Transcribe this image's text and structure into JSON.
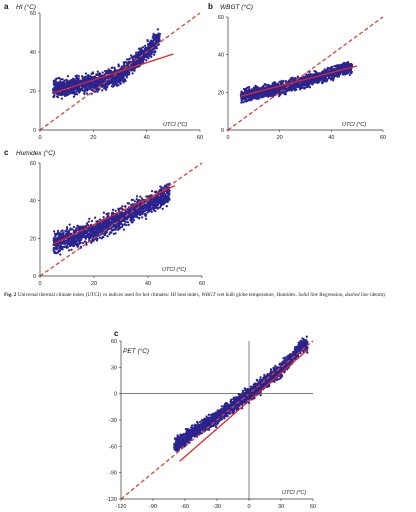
{
  "chart_data": [
    {
      "type": "scatter",
      "panel": "a",
      "ylabel": "HI (°C)",
      "xlabel": "UTCI (°C)",
      "xlim": [
        0,
        60
      ],
      "ylim": [
        0,
        60
      ],
      "xticks": [
        "0",
        "20",
        "40",
        "60"
      ],
      "yticks": [
        "0",
        "20",
        "40",
        "60"
      ],
      "point_cloud": {
        "x_range": [
          5,
          45
        ],
        "y_center": [
          [
            5,
            21
          ],
          [
            20,
            24
          ],
          [
            30,
            28
          ],
          [
            40,
            40
          ],
          [
            45,
            48
          ]
        ],
        "spread": 4
      },
      "regression": {
        "x": [
          5,
          50
        ],
        "y": [
          19,
          39
        ]
      },
      "identity": true
    },
    {
      "type": "scatter",
      "panel": "b",
      "ylabel": "WBGT (°C)",
      "xlabel": "UTCI (°C)",
      "xlim": [
        0,
        60
      ],
      "ylim": [
        0,
        60
      ],
      "xticks": [
        "0",
        "20",
        "40",
        "60"
      ],
      "yticks": [
        "0",
        "20",
        "40",
        "60"
      ],
      "point_cloud": {
        "x_range": [
          5,
          48
        ],
        "y_center": [
          [
            5,
            18
          ],
          [
            20,
            22
          ],
          [
            30,
            26
          ],
          [
            40,
            30
          ],
          [
            48,
            34
          ]
        ],
        "spread": 3
      },
      "regression": {
        "x": [
          5,
          50
        ],
        "y": [
          18,
          34
        ]
      },
      "identity": true
    },
    {
      "type": "scatter",
      "panel": "c",
      "ylabel": "Humidex (°C)",
      "xlabel": "UTCI (°C)",
      "xlim": [
        0,
        60
      ],
      "ylim": [
        0,
        60
      ],
      "xticks": [
        "0",
        "20",
        "40",
        "60"
      ],
      "yticks": [
        "0",
        "20",
        "40",
        "60"
      ],
      "point_cloud": {
        "x_range": [
          5,
          48
        ],
        "y_center": [
          [
            5,
            17
          ],
          [
            20,
            24
          ],
          [
            30,
            31
          ],
          [
            40,
            38
          ],
          [
            48,
            44
          ]
        ],
        "spread": 5
      },
      "regression": {
        "x": [
          5,
          50
        ],
        "y": [
          17,
          48
        ]
      },
      "identity": true
    },
    {
      "type": "scatter",
      "panel": "c",
      "ylabel": "PET (°C)",
      "xlabel": "UTCI (°C)",
      "xlim": [
        -120,
        60
      ],
      "ylim": [
        -120,
        60
      ],
      "xticks": [
        "-120",
        "-90",
        "-60",
        "-30",
        "0",
        "30",
        "60"
      ],
      "yticks": [
        "60",
        "30",
        "0",
        "-30",
        "-60",
        "-90",
        "-120"
      ],
      "point_cloud": {
        "x_range": [
          -70,
          55
        ],
        "y_center": [
          [
            -70,
            -60
          ],
          [
            -50,
            -42
          ],
          [
            -30,
            -27
          ],
          [
            -10,
            -9
          ],
          [
            10,
            8
          ],
          [
            30,
            28
          ],
          [
            50,
            55
          ]
        ],
        "spread": 7
      },
      "regression": {
        "x": [
          -65,
          55
        ],
        "y": [
          -77,
          50
        ]
      },
      "identity": true
    }
  ],
  "caption": {
    "fig": "Fig. 2",
    "text_1": " Universal thermal climate index (UTCI) vs indices used for hot climates: ",
    "hi": "HI",
    "text_2": " heat index, ",
    "wbgt": "WBGT",
    "text_3": " wet bulb globe temperature, Humidex. ",
    "solid": "Solid line",
    "text_4": " Regression, ",
    "dashed": "dashed line",
    "text_5": " identity"
  },
  "colors": {
    "points": "#2a2490",
    "regression": "#e0262a",
    "identity": "#d2473b",
    "axis": "#333333"
  }
}
